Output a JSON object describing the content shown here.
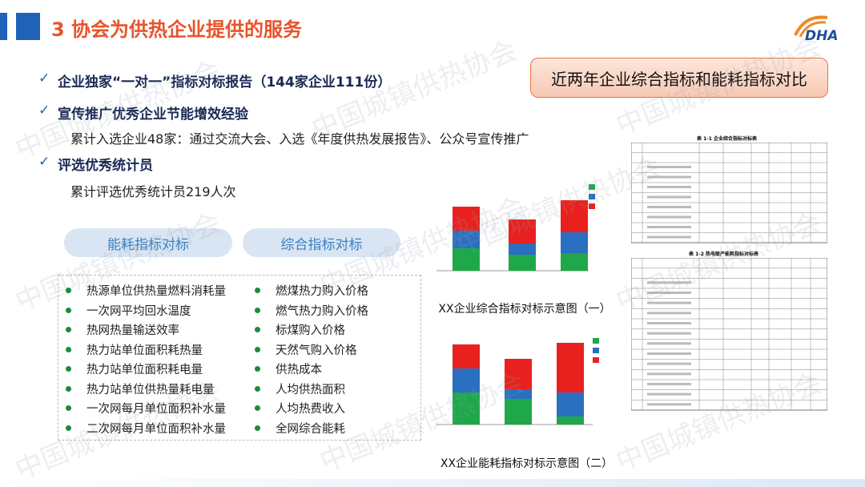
{
  "header": {
    "title": "3 协会为供热企业提供的服务",
    "logo": "DHA"
  },
  "watermark": "中国城镇供热协会",
  "bullets": [
    {
      "text": "企业独家“一对一”指标对标报告（144家企业111份）"
    },
    {
      "text": "宣传推广优秀企业节能增效经验",
      "detail": "累计入选企业48家：通过交流大会、入选《年度供热发展报告》、公众号宣传推广"
    },
    {
      "text": "评选优秀统计员",
      "detail": "累计评选优秀统计员219人次"
    }
  ],
  "callout": "近两年企业综合指标和能耗指标对比",
  "tabs": [
    "能耗指标对标",
    "综合指标对标"
  ],
  "lists": [
    [
      "热源单位供热量燃料消耗量",
      "一次网平均回水温度",
      "热网热量输送效率",
      "热力站单位面积耗热量",
      "热力站单位面积耗电量",
      "热力站单位供热量耗电量",
      "一次网每月单位面积补水量",
      "二次网每月单位面积补水量"
    ],
    [
      "燃煤热力购入价格",
      "燃气热力购入价格",
      "标煤购入价格",
      "天然气购入价格",
      "供热成本",
      "人均供热面积",
      "人均热费收入",
      "全网综合能耗"
    ]
  ],
  "figures": [
    {
      "caption": "XX企业综合指标对标示意图（一）"
    },
    {
      "caption": "XX企业能耗指标对标示意图（二）"
    }
  ],
  "tables": [
    {
      "title": "表 1-1  企业综合指标对标表"
    },
    {
      "title": "表 1-2  热电联产能耗指标对标表"
    }
  ]
}
